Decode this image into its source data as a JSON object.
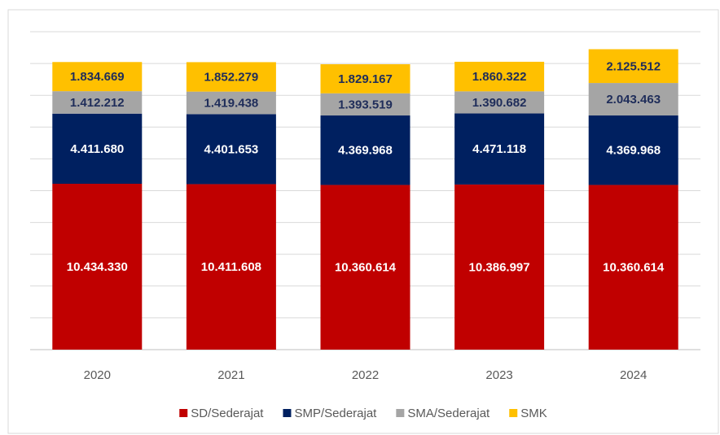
{
  "chart_data": {
    "type": "stacked_bar",
    "categories": [
      "2020",
      "2021",
      "2022",
      "2023",
      "2024"
    ],
    "series": [
      {
        "name": "SD/Sederajat",
        "color": "#c00000",
        "label_color": "#ffffff",
        "values": [
          10434330,
          10411608,
          10360614,
          10386997,
          10360614
        ],
        "value_labels": [
          "10.434.330",
          "10.411.608",
          "10.360.614",
          "10.386.997",
          "10.360.614"
        ]
      },
      {
        "name": "SMP/Sederajat",
        "color": "#002060",
        "label_color": "#ffffff",
        "values": [
          4411680,
          4401653,
          4369968,
          4471118,
          4369968
        ],
        "value_labels": [
          "4.411.680",
          "4.401.653",
          "4.369.968",
          "4.471.118",
          "4.369.968"
        ]
      },
      {
        "name": "SMA/Sederajat",
        "color": "#a5a5a5",
        "label_color": "#1f2d5a",
        "values": [
          1412212,
          1419438,
          1393519,
          1390682,
          2043463
        ],
        "value_labels": [
          "1.412.212",
          "1.419.438",
          "1.393.519",
          "1.390.682",
          "2.043.463"
        ]
      },
      {
        "name": "SMK",
        "color": "#ffc000",
        "label_color": "#1f2d5a",
        "values": [
          1834669,
          1852279,
          1829167,
          1860322,
          2125512
        ],
        "value_labels": [
          "1.834.669",
          "1.852.279",
          "1.829.167",
          "1.860.322",
          "2.125.512"
        ]
      }
    ],
    "ylim": [
      0,
      20000000
    ],
    "yticks": [
      0,
      2000000,
      4000000,
      6000000,
      8000000,
      10000000,
      12000000,
      14000000,
      16000000,
      18000000,
      20000000
    ],
    "grid": true,
    "legend": "bottom"
  }
}
